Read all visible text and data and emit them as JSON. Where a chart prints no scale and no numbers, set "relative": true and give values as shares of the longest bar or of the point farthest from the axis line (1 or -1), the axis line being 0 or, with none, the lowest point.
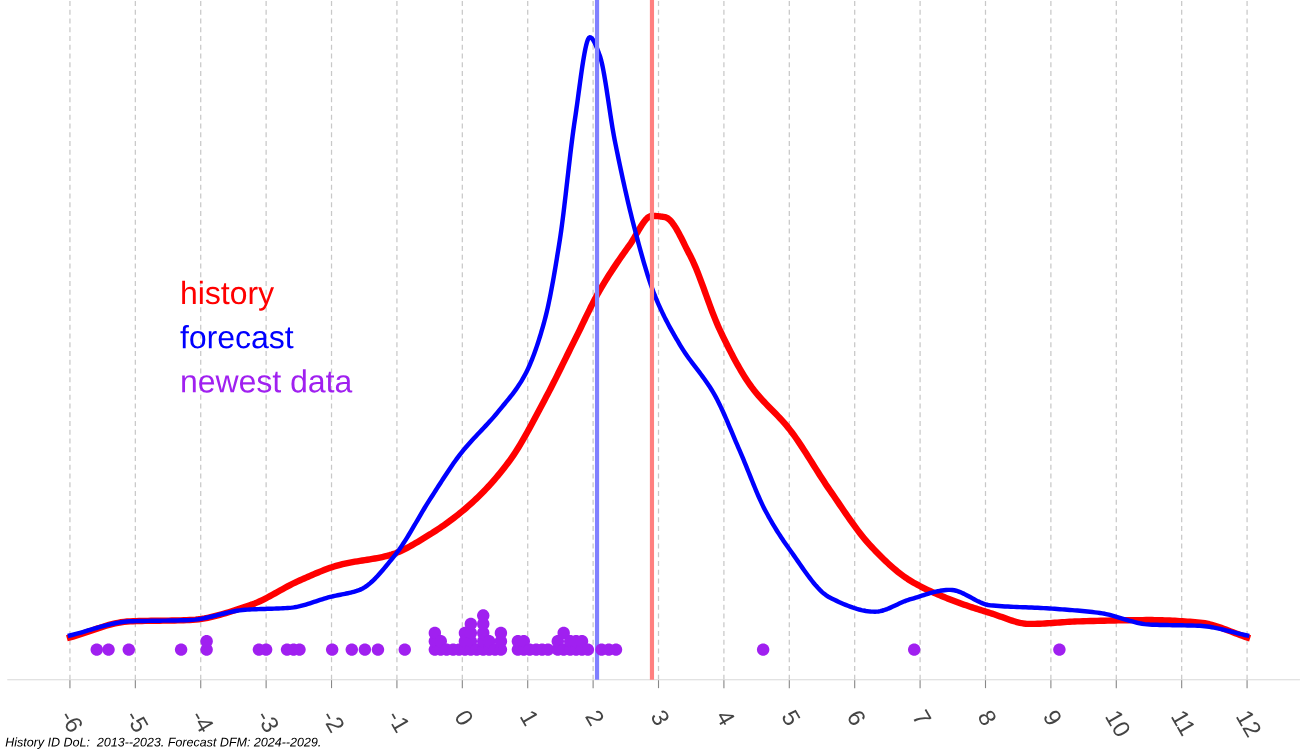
{
  "chart_data": {
    "type": "line",
    "relative": true,
    "annotations": [
      "History ID DoL:  2013--2023. Forecast DFM: 2024--2029."
    ],
    "xlim": [
      -6.95,
      12.8
    ],
    "xticks": [
      -6,
      -5,
      -4,
      -3,
      -2,
      -1,
      0,
      1,
      2,
      3,
      4,
      5,
      6,
      7,
      8,
      9,
      10,
      11,
      12
    ],
    "grid": "x",
    "legend": "left",
    "series": [
      {
        "name": "history",
        "color": "#ff0000",
        "x": [
          -6,
          -5.08,
          -4.17,
          -3.25,
          -2.48,
          -1.87,
          -1.11,
          -0.5,
          0.12,
          0.73,
          1.26,
          1.72,
          2.1,
          2.56,
          2.9,
          3.1,
          3.48,
          3.94,
          4.4,
          5.01,
          5.62,
          6.23,
          6.84,
          7.46,
          8.07,
          8.68,
          9.44,
          10.51,
          11.28,
          12
        ],
        "values": [
          0.066,
          0.091,
          0.093,
          0.116,
          0.155,
          0.179,
          0.194,
          0.226,
          0.273,
          0.342,
          0.436,
          0.529,
          0.606,
          0.677,
          0.722,
          0.72,
          0.661,
          0.544,
          0.459,
          0.389,
          0.295,
          0.21,
          0.155,
          0.125,
          0.104,
          0.087,
          0.091,
          0.093,
          0.089,
          0.066
        ]
      },
      {
        "name": "forecast",
        "color": "#0000ff",
        "x": [
          -6,
          -5.08,
          -4.17,
          -3.32,
          -2.64,
          -2.02,
          -1.57,
          -1.03,
          -0.5,
          -0.04,
          0.57,
          0.96,
          1.26,
          1.49,
          1.72,
          1.95,
          2.1,
          2.33,
          2.64,
          2.94,
          3.33,
          3.86,
          4.24,
          4.63,
          5.01,
          5.62,
          6.31,
          6.84,
          7.46,
          8.07,
          8.98,
          9.75,
          10.51,
          11.28,
          12
        ],
        "values": [
          0.069,
          0.091,
          0.093,
          0.109,
          0.112,
          0.129,
          0.14,
          0.194,
          0.28,
          0.35,
          0.42,
          0.475,
          0.56,
          0.684,
          0.871,
          1.0,
          0.972,
          0.84,
          0.7,
          0.599,
          0.521,
          0.443,
          0.357,
          0.264,
          0.202,
          0.128,
          0.106,
          0.125,
          0.14,
          0.116,
          0.111,
          0.104,
          0.086,
          0.084,
          0.069
        ]
      },
      {
        "name": "newest data",
        "type": "scatter",
        "marker": "circle",
        "color": "#a020f0",
        "x": [
          -5.59,
          -5.41,
          -5.1,
          -4.3,
          -3.91,
          -3.91,
          -3.11,
          -3.0,
          -2.68,
          -2.58,
          -2.49,
          -1.99,
          -1.69,
          -1.49,
          -1.29,
          -0.88,
          -0.42,
          -0.42,
          -0.42,
          -0.33,
          -0.33,
          -0.24,
          -0.14,
          -0.05,
          0.04,
          0.04,
          0.04,
          0.13,
          0.13,
          0.13,
          0.13,
          0.22,
          0.32,
          0.32,
          0.32,
          0.32,
          0.32,
          0.41,
          0.41,
          0.5,
          0.59,
          0.59,
          0.59,
          0.85,
          0.85,
          0.94,
          0.94,
          1.03,
          1.13,
          1.22,
          1.31,
          1.46,
          1.46,
          1.55,
          1.55,
          1.65,
          1.65,
          1.74,
          1.74,
          1.83,
          1.83,
          1.92,
          2.13,
          2.24,
          2.35,
          4.6,
          6.91,
          9.13
        ],
        "values": [
          0.047,
          0.047,
          0.047,
          0.047,
          0.047,
          0.06,
          0.047,
          0.047,
          0.047,
          0.047,
          0.047,
          0.047,
          0.047,
          0.047,
          0.047,
          0.047,
          0.047,
          0.06,
          0.073,
          0.047,
          0.06,
          0.047,
          0.047,
          0.047,
          0.047,
          0.06,
          0.073,
          0.047,
          0.06,
          0.073,
          0.087,
          0.047,
          0.047,
          0.06,
          0.073,
          0.087,
          0.1,
          0.047,
          0.06,
          0.047,
          0.047,
          0.06,
          0.073,
          0.047,
          0.06,
          0.047,
          0.06,
          0.047,
          0.047,
          0.047,
          0.047,
          0.047,
          0.06,
          0.047,
          0.073,
          0.047,
          0.06,
          0.047,
          0.06,
          0.047,
          0.06,
          0.047,
          0.047,
          0.047,
          0.047,
          0.047,
          0.047,
          0.047
        ]
      }
    ],
    "ref_lines": [
      {
        "axis": "x",
        "value": 2.06,
        "color": "#8080ff"
      },
      {
        "axis": "x",
        "value": 2.9,
        "color": "#ff8080"
      }
    ]
  }
}
